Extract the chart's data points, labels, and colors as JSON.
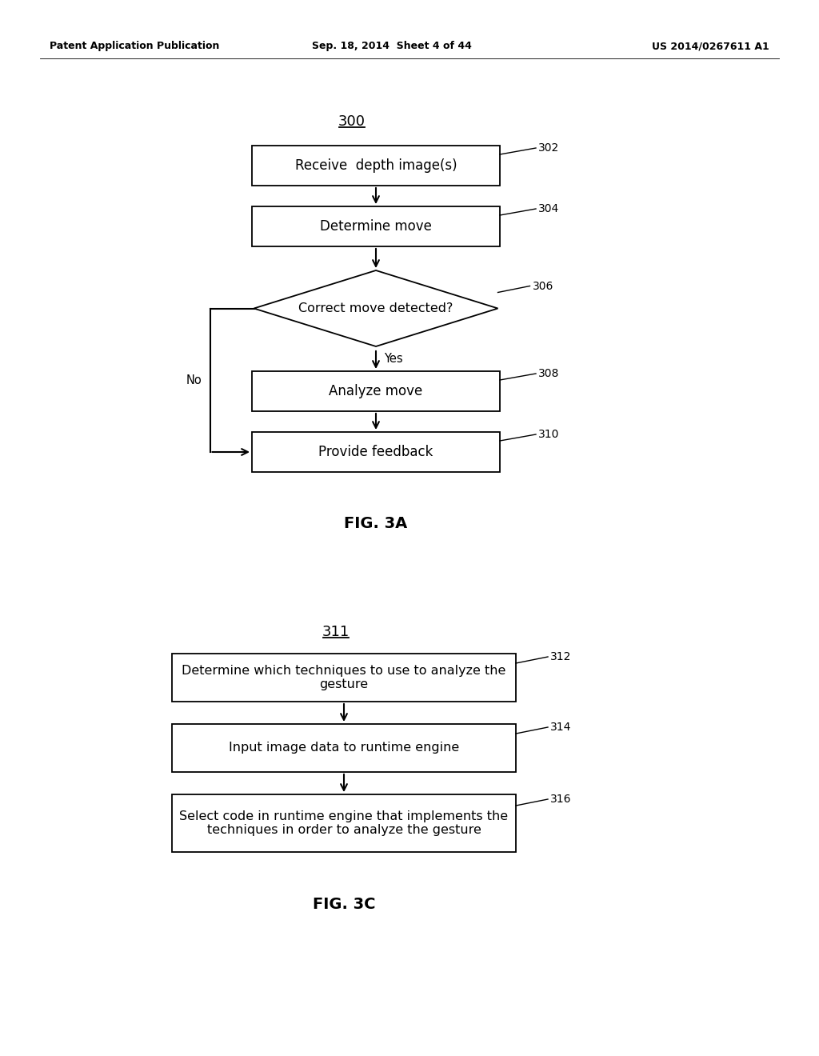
{
  "bg_color": "#ffffff",
  "header_left": "Patent Application Publication",
  "header_mid": "Sep. 18, 2014  Sheet 4 of 44",
  "header_right": "US 2014/0267611 A1",
  "fig3a_label": "300",
  "fig3a_caption": "FIG. 3A",
  "fig3c_label": "311",
  "fig3c_caption": "FIG. 3C",
  "box302_text": "Receive  depth image(s)",
  "box304_text": "Determine move",
  "diamond306_text": "Correct move detected?",
  "box308_text": "Analyze move",
  "box310_text": "Provide feedback",
  "label302": "302",
  "label304": "304",
  "label306": "306",
  "label308": "308",
  "label310": "310",
  "yes_label": "Yes",
  "no_label": "No",
  "box312_text": "Determine which techniques to use to analyze the\ngesture",
  "box314_text": "Input image data to runtime engine",
  "box316_text": "Select code in runtime engine that implements the\ntechniques in order to analyze the gesture",
  "label312": "312",
  "label314": "314",
  "label316": "316",
  "header_fontsize": 9,
  "body_fontsize": 12,
  "caption_fontsize": 14,
  "label_fontsize": 10,
  "small_fontsize": 11
}
